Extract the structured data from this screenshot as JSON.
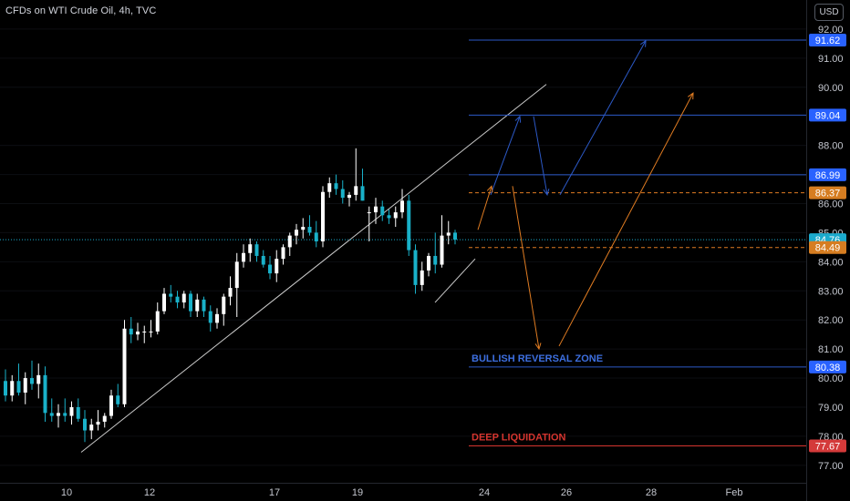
{
  "title": "CFDs on WTI Crude Oil, 4h, TVC",
  "currency": "USD",
  "colors": {
    "up": "#ffffff",
    "down": "#19b1c9",
    "blue_line": "#2c59c7",
    "orange": "#e07c22",
    "red": "#d6352f",
    "trend": "#c9c9c9",
    "axis_text": "#c4c7cf",
    "blue_tag": "#2962ff",
    "current_tag": "#1baacd",
    "orange_tag": "#d67d21",
    "red_tag": "#d43a3a"
  },
  "chart_data": {
    "type": "candlestick",
    "y_range": [
      76.4,
      93.0
    ],
    "y_ticks": [
      "92.00",
      "91.00",
      "90.00",
      "88.00",
      "87.00",
      "86.00",
      "85.00",
      "84.00",
      "83.00",
      "82.00",
      "81.00",
      "80.00",
      "79.00",
      "78.00",
      "77.00"
    ],
    "x_ticks": [
      "10",
      "12",
      "17",
      "19",
      "24",
      "26",
      "28",
      "Feb"
    ],
    "candles": [
      {
        "o": 79.9,
        "h": 80.3,
        "l": 79.2,
        "c": 79.4
      },
      {
        "o": 79.4,
        "h": 80.1,
        "l": 79.2,
        "c": 79.9
      },
      {
        "o": 79.9,
        "h": 80.5,
        "l": 79.4,
        "c": 79.5
      },
      {
        "o": 79.5,
        "h": 80.2,
        "l": 79.1,
        "c": 80.0
      },
      {
        "o": 80.0,
        "h": 80.6,
        "l": 79.6,
        "c": 79.8
      },
      {
        "o": 79.8,
        "h": 80.5,
        "l": 79.3,
        "c": 80.1
      },
      {
        "o": 80.1,
        "h": 80.4,
        "l": 78.5,
        "c": 78.8
      },
      {
        "o": 78.8,
        "h": 79.3,
        "l": 78.5,
        "c": 78.7
      },
      {
        "o": 78.7,
        "h": 79.1,
        "l": 78.3,
        "c": 78.8
      },
      {
        "o": 78.8,
        "h": 79.3,
        "l": 78.5,
        "c": 78.7
      },
      {
        "o": 78.7,
        "h": 79.2,
        "l": 78.4,
        "c": 79.0
      },
      {
        "o": 79.0,
        "h": 79.3,
        "l": 78.5,
        "c": 78.6
      },
      {
        "o": 78.6,
        "h": 78.9,
        "l": 77.8,
        "c": 78.2
      },
      {
        "o": 78.2,
        "h": 78.6,
        "l": 77.9,
        "c": 78.4
      },
      {
        "o": 78.4,
        "h": 78.9,
        "l": 78.2,
        "c": 78.5
      },
      {
        "o": 78.5,
        "h": 78.8,
        "l": 78.3,
        "c": 78.7
      },
      {
        "o": 78.7,
        "h": 79.6,
        "l": 78.6,
        "c": 79.4
      },
      {
        "o": 79.4,
        "h": 79.8,
        "l": 79.0,
        "c": 79.1
      },
      {
        "o": 79.1,
        "h": 82.0,
        "l": 79.0,
        "c": 81.7
      },
      {
        "o": 81.7,
        "h": 82.1,
        "l": 81.2,
        "c": 81.5
      },
      {
        "o": 81.5,
        "h": 81.9,
        "l": 81.3,
        "c": 81.6
      },
      {
        "o": 81.6,
        "h": 81.8,
        "l": 81.2,
        "c": 81.6
      },
      {
        "o": 81.6,
        "h": 82.0,
        "l": 81.4,
        "c": 81.6
      },
      {
        "o": 81.6,
        "h": 82.6,
        "l": 81.5,
        "c": 82.3
      },
      {
        "o": 82.3,
        "h": 83.1,
        "l": 82.2,
        "c": 82.9
      },
      {
        "o": 82.9,
        "h": 83.2,
        "l": 82.6,
        "c": 82.8
      },
      {
        "o": 82.8,
        "h": 83.0,
        "l": 82.4,
        "c": 82.6
      },
      {
        "o": 82.6,
        "h": 83.0,
        "l": 82.4,
        "c": 82.9
      },
      {
        "o": 82.9,
        "h": 83.0,
        "l": 82.1,
        "c": 82.3
      },
      {
        "o": 82.3,
        "h": 82.9,
        "l": 82.1,
        "c": 82.7
      },
      {
        "o": 82.7,
        "h": 82.8,
        "l": 82.1,
        "c": 82.3
      },
      {
        "o": 82.3,
        "h": 82.5,
        "l": 81.6,
        "c": 81.9
      },
      {
        "o": 81.9,
        "h": 82.4,
        "l": 81.7,
        "c": 82.2
      },
      {
        "o": 82.2,
        "h": 82.9,
        "l": 81.8,
        "c": 82.8
      },
      {
        "o": 82.8,
        "h": 83.5,
        "l": 82.5,
        "c": 83.1
      },
      {
        "o": 83.1,
        "h": 84.3,
        "l": 82.1,
        "c": 84.0
      },
      {
        "o": 84.0,
        "h": 84.6,
        "l": 83.8,
        "c": 84.3
      },
      {
        "o": 84.3,
        "h": 84.8,
        "l": 84.0,
        "c": 84.6
      },
      {
        "o": 84.6,
        "h": 84.7,
        "l": 84.0,
        "c": 84.2
      },
      {
        "o": 84.2,
        "h": 84.4,
        "l": 83.8,
        "c": 83.9
      },
      {
        "o": 83.9,
        "h": 84.2,
        "l": 83.4,
        "c": 83.6
      },
      {
        "o": 83.6,
        "h": 84.4,
        "l": 83.3,
        "c": 84.1
      },
      {
        "o": 84.1,
        "h": 84.6,
        "l": 83.9,
        "c": 84.5
      },
      {
        "o": 84.5,
        "h": 85.0,
        "l": 84.2,
        "c": 84.9
      },
      {
        "o": 84.9,
        "h": 85.3,
        "l": 84.6,
        "c": 85.1
      },
      {
        "o": 85.1,
        "h": 85.5,
        "l": 84.8,
        "c": 85.2
      },
      {
        "o": 85.2,
        "h": 85.6,
        "l": 84.9,
        "c": 85.0
      },
      {
        "o": 85.0,
        "h": 85.4,
        "l": 84.5,
        "c": 84.7
      },
      {
        "o": 84.7,
        "h": 86.6,
        "l": 84.5,
        "c": 86.4
      },
      {
        "o": 86.4,
        "h": 86.9,
        "l": 86.2,
        "c": 86.7
      },
      {
        "o": 86.7,
        "h": 87.0,
        "l": 86.3,
        "c": 86.5
      },
      {
        "o": 86.5,
        "h": 86.8,
        "l": 86.0,
        "c": 86.2
      },
      {
        "o": 86.2,
        "h": 86.4,
        "l": 85.9,
        "c": 86.3
      },
      {
        "o": 86.3,
        "h": 87.9,
        "l": 86.1,
        "c": 86.6
      },
      {
        "o": 86.6,
        "h": 87.2,
        "l": 86.1,
        "c": 86.1
      },
      {
        "o": 85.7,
        "h": 85.9,
        "l": 84.7,
        "c": 85.7
      },
      {
        "o": 85.7,
        "h": 86.2,
        "l": 85.3,
        "c": 85.9
      },
      {
        "o": 85.9,
        "h": 86.1,
        "l": 85.4,
        "c": 85.6
      },
      {
        "o": 85.6,
        "h": 85.8,
        "l": 85.3,
        "c": 85.5
      },
      {
        "o": 85.5,
        "h": 85.9,
        "l": 85.2,
        "c": 85.7
      },
      {
        "o": 85.7,
        "h": 86.5,
        "l": 85.5,
        "c": 86.1
      },
      {
        "o": 86.1,
        "h": 86.3,
        "l": 84.2,
        "c": 84.4
      },
      {
        "o": 84.4,
        "h": 84.6,
        "l": 82.9,
        "c": 83.2
      },
      {
        "o": 83.2,
        "h": 84.0,
        "l": 83.0,
        "c": 83.7
      },
      {
        "o": 83.7,
        "h": 84.3,
        "l": 83.5,
        "c": 84.2
      },
      {
        "o": 84.2,
        "h": 85.0,
        "l": 83.6,
        "c": 83.9
      },
      {
        "o": 83.9,
        "h": 85.6,
        "l": 83.8,
        "c": 84.9
      },
      {
        "o": 84.9,
        "h": 85.4,
        "l": 84.6,
        "c": 85.0
      },
      {
        "o": 85.0,
        "h": 85.1,
        "l": 84.6,
        "c": 84.76
      }
    ],
    "levels": [
      {
        "value": 91.62,
        "label": "91.62",
        "kind": "blue"
      },
      {
        "value": 89.04,
        "label": "89.04",
        "kind": "blue"
      },
      {
        "value": 86.99,
        "label": "86.99",
        "kind": "blue"
      },
      {
        "value": 86.37,
        "label": "86.37",
        "kind": "orange_dashed"
      },
      {
        "value": 84.76,
        "label": "84.76",
        "kind": "current"
      },
      {
        "value": 84.49,
        "label": "84.49",
        "kind": "orange_dashed"
      },
      {
        "value": 80.38,
        "label": "80.38",
        "kind": "blue"
      },
      {
        "value": 77.67,
        "label": "77.67",
        "kind": "red"
      }
    ],
    "annotations": [
      {
        "text": "BULLISH REVERSAL ZONE",
        "value": 80.38,
        "kind": "blue"
      },
      {
        "text": "DEEP LIQUIDATION",
        "value": 77.67,
        "kind": "red"
      }
    ]
  }
}
